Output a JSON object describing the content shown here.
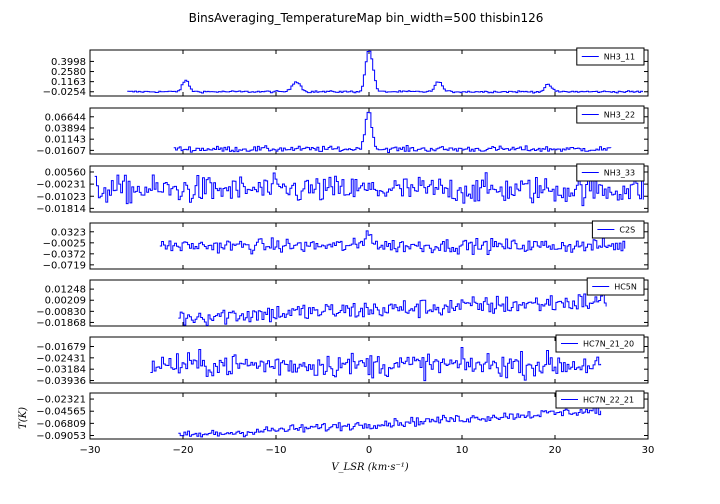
{
  "chart_data": {
    "type": "line",
    "title": "BinsAveraging_TemperatureMap bin_width=500 thisbin126",
    "xlabel": "V_LSR (km·s⁻¹)",
    "ylabel": "T(K)",
    "xlim": [
      -30,
      30
    ],
    "x_ticks": [
      "−30",
      "−20",
      "−10",
      "0",
      "10",
      "20",
      "30"
    ],
    "x_tick_values": [
      -30,
      -20,
      -10,
      0,
      10,
      20,
      30
    ],
    "legend_placement": "top-right",
    "panels": [
      {
        "series_name": "NH3_11",
        "color": "#0000ff",
        "x_range": [
          -26,
          29.5
        ],
        "ylim": [
          -0.085,
          0.56
        ],
        "yticks": [
          "0.3998",
          "0.2580",
          "0.1163",
          "−0.0254"
        ],
        "ytick_values": [
          0.3998,
          0.258,
          0.1163,
          -0.0254
        ],
        "baseline": -0.025,
        "noise": 0.007,
        "step": 0.2,
        "peaks": [
          {
            "x": -19.8,
            "height": 0.16,
            "width": 0.35
          },
          {
            "x": -8.1,
            "height": 0.11,
            "width": 0.35
          },
          {
            "x": -7.6,
            "height": 0.08,
            "width": 0.3
          },
          {
            "x": -0.25,
            "height": 0.43,
            "width": 0.3
          },
          {
            "x": 0.2,
            "height": 0.33,
            "width": 0.3
          },
          {
            "x": 7.4,
            "height": 0.15,
            "width": 0.35
          },
          {
            "x": 19.2,
            "height": 0.1,
            "width": 0.35
          }
        ]
      },
      {
        "series_name": "NH3_22",
        "color": "#0000ff",
        "x_range": [
          -21,
          26
        ],
        "ylim": [
          -0.025,
          0.088
        ],
        "yticks": [
          "0.06644",
          "0.03894",
          "0.01143",
          "−0.01607"
        ],
        "ytick_values": [
          0.06644,
          0.03894,
          0.01143,
          -0.01607
        ],
        "baseline": -0.013,
        "noise": 0.0035,
        "step": 0.2,
        "peaks": [
          {
            "x": -0.05,
            "height": 0.085,
            "width": 0.3
          },
          {
            "x": -0.5,
            "height": 0.025,
            "width": 0.3
          }
        ]
      },
      {
        "series_name": "NH3_33",
        "color": "#0000ff",
        "x_range": [
          -29.5,
          29.5
        ],
        "ylim": [
          -0.0205,
          0.0095
        ],
        "yticks": [
          "0.00560",
          "−0.00231",
          "−0.01023",
          "−0.01814"
        ],
        "ytick_values": [
          0.0056,
          -0.00231,
          -0.01023,
          -0.01814
        ],
        "baseline": -0.006,
        "noise": 0.0045,
        "step": 0.2,
        "peaks": []
      },
      {
        "series_name": "C2S",
        "color": "#0000ff",
        "x_range": [
          -22.5,
          27.5
        ],
        "ylim": [
          -0.085,
          0.06
        ],
        "yticks": [
          "0.0323",
          "−0.0025",
          "−0.0372",
          "−0.0719"
        ],
        "ytick_values": [
          0.0323,
          -0.0025,
          -0.0372,
          -0.0719
        ],
        "baseline": -0.012,
        "noise": 0.011,
        "step": 0.2,
        "peaks": [
          {
            "x": -0.1,
            "height": 0.048,
            "width": 0.35
          }
        ]
      },
      {
        "series_name": "HC5N",
        "color": "#0000ff",
        "x_range": [
          -20.5,
          25.5
        ],
        "ylim": [
          -0.022,
          0.021
        ],
        "yticks": [
          "0.01248",
          "0.00209",
          "−0.00830",
          "−0.01868"
        ],
        "ytick_values": [
          0.01248,
          0.00209,
          -0.0083,
          -0.01868
        ],
        "baseline": -0.007,
        "trend": 0.00032,
        "noise": 0.0045,
        "step": 0.2,
        "peaks": []
      },
      {
        "series_name": "HC7N_21_20",
        "color": "#0000ff",
        "x_range": [
          -23.5,
          25
        ],
        "ylim": [
          -0.041,
          -0.0105
        ],
        "yticks": [
          "−0.01679",
          "−0.02431",
          "−0.03184",
          "−0.03936"
        ],
        "ytick_values": [
          -0.01679,
          -0.02431,
          -0.03184,
          -0.03936
        ],
        "baseline": -0.029,
        "noise": 0.004,
        "step": 0.2,
        "peaks": []
      },
      {
        "series_name": "HC7N_22_21",
        "color": "#0000ff",
        "x_range": [
          -20.5,
          25
        ],
        "ylim": [
          -0.097,
          -0.012
        ],
        "yticks": [
          "−0.02321",
          "−0.04565",
          "−0.06809",
          "−0.09053"
        ],
        "ytick_values": [
          -0.02321,
          -0.04565,
          -0.06809,
          -0.09053
        ],
        "baseline": -0.07,
        "trend": 0.00105,
        "noise": 0.004,
        "step": 0.2,
        "peaks": []
      }
    ]
  }
}
